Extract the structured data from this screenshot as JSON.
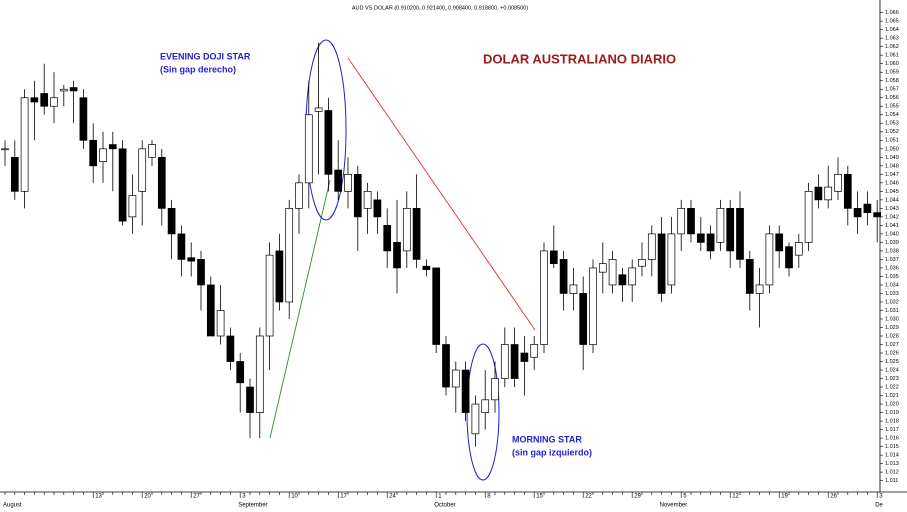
{
  "chart_data": {
    "type": "candlestick",
    "title": "AUD VS DOLAR (0.910200, 0.921400, 0.908400, 0.918800, +0.008500)",
    "annotations": [
      "EVENING DOJI STAR",
      "(Sin gap derecho)",
      "DOLAR AUSTRALIANO DIARIO",
      "MORNING STAR",
      "(sin gap izquierdo)"
    ],
    "categories": [
      null,
      null,
      null,
      null,
      null,
      null,
      null,
      null,
      null,
      "13",
      null,
      null,
      null,
      null,
      "20",
      null,
      null,
      null,
      null,
      "27",
      null,
      null,
      null,
      null,
      "3",
      null,
      null,
      null,
      null,
      "10",
      null,
      null,
      null,
      null,
      "17",
      null,
      null,
      null,
      null,
      "24",
      null,
      null,
      null,
      null,
      "1",
      null,
      null,
      null,
      null,
      "8",
      null,
      null,
      null,
      null,
      "15",
      null,
      null,
      null,
      null,
      "22",
      null,
      null,
      null,
      null,
      "29",
      null,
      null,
      null,
      null,
      "5",
      null,
      null,
      null,
      null,
      "12",
      null,
      null,
      null,
      null,
      "19",
      null,
      null,
      null,
      null,
      "26",
      null,
      null,
      null,
      null,
      "3"
    ],
    "months": [
      "August",
      null,
      null,
      null,
      null,
      null,
      null,
      null,
      null,
      null,
      null,
      null,
      null,
      null,
      null,
      null,
      null,
      null,
      null,
      null,
      null,
      null,
      null,
      null,
      "September",
      null,
      null,
      null,
      null,
      null,
      null,
      null,
      null,
      null,
      null,
      null,
      null,
      null,
      null,
      null,
      null,
      null,
      null,
      null,
      "October",
      null,
      null,
      null,
      null,
      null,
      null,
      null,
      null,
      null,
      null,
      null,
      null,
      null,
      null,
      null,
      null,
      null,
      null,
      null,
      null,
      null,
      null,
      "November",
      null,
      null,
      null,
      null,
      null,
      null,
      null,
      null,
      null,
      null,
      null,
      null,
      null,
      null,
      null,
      null,
      null,
      null,
      null,
      null,
      null,
      "De"
    ],
    "open": [
      1.05,
      1.049,
      1.045,
      1.056,
      1.0565,
      1.055,
      1.0568,
      1.0572,
      1.056,
      1.051,
      1.0485,
      1.0505,
      1.05,
      1.042,
      1.045,
      1.049,
      1.049,
      1.043,
      1.04,
      1.0372,
      1.037,
      1.034,
      1.028,
      1.028,
      1.025,
      1.022,
      1.019,
      1.028,
      1.038,
      1.032,
      1.043,
      1.046,
      1.0544,
      1.0545,
      1.0475,
      1.045,
      1.047,
      1.043,
      1.044,
      1.041,
      1.039,
      1.038,
      1.043,
      1.0362,
      1.036,
      1.027,
      1.022,
      1.024,
      1.0165,
      1.019,
      1.0205,
      1.023,
      1.027,
      1.026,
      1.0255,
      1.027,
      1.038,
      1.037,
      1.033,
      1.033,
      1.027,
      1.0355,
      1.034,
      1.0352,
      1.034,
      1.0362,
      1.037,
      1.04,
      1.034,
      1.04,
      1.043,
      1.04,
      1.04,
      1.039,
      1.043,
      1.043,
      1.037,
      1.033,
      1.034,
      1.04,
      1.0385,
      1.0375,
      1.039,
      1.0455,
      1.044,
      1.045,
      1.047,
      1.043,
      1.0435,
      1.0425
    ],
    "high": [
      1.051,
      1.051,
      1.057,
      1.058,
      1.06,
      1.059,
      1.0575,
      1.058,
      1.057,
      1.053,
      1.052,
      1.052,
      1.051,
      1.047,
      1.051,
      1.051,
      1.05,
      1.044,
      1.041,
      1.039,
      1.038,
      1.035,
      1.034,
      1.029,
      1.026,
      1.023,
      1.029,
      1.039,
      1.04,
      1.044,
      1.047,
      1.058,
      1.0625,
      1.056,
      1.051,
      1.049,
      1.048,
      1.046,
      1.045,
      1.043,
      1.044,
      1.045,
      1.047,
      1.037,
      1.036,
      1.028,
      1.025,
      1.025,
      1.021,
      1.024,
      1.025,
      1.029,
      1.029,
      1.028,
      1.028,
      1.039,
      1.041,
      1.038,
      1.036,
      1.035,
      1.037,
      1.039,
      1.038,
      1.036,
      1.037,
      1.039,
      1.041,
      1.042,
      1.042,
      1.044,
      1.044,
      1.042,
      1.041,
      1.044,
      1.044,
      1.045,
      1.038,
      1.036,
      1.041,
      1.041,
      1.039,
      1.04,
      1.046,
      1.047,
      1.048,
      1.049,
      1.048,
      1.045,
      1.045,
      1.044
    ],
    "low": [
      1.048,
      1.044,
      1.043,
      1.051,
      1.054,
      1.053,
      1.055,
      1.053,
      1.05,
      1.046,
      1.046,
      1.045,
      1.041,
      1.04,
      1.041,
      1.048,
      1.041,
      1.037,
      1.035,
      1.035,
      1.031,
      1.028,
      1.027,
      1.024,
      1.019,
      1.016,
      1.016,
      1.024,
      1.031,
      1.03,
      1.04,
      1.043,
      1.047,
      1.045,
      1.044,
      1.043,
      1.038,
      1.04,
      1.04,
      1.036,
      1.033,
      1.036,
      1.036,
      1.035,
      1.026,
      1.021,
      1.019,
      1.018,
      1.015,
      1.017,
      1.019,
      1.022,
      1.022,
      1.021,
      1.024,
      1.026,
      1.036,
      1.031,
      1.031,
      1.024,
      1.026,
      1.033,
      1.033,
      1.032,
      1.032,
      1.035,
      1.035,
      1.032,
      1.033,
      1.038,
      1.039,
      1.038,
      1.037,
      1.038,
      1.036,
      1.036,
      1.031,
      1.029,
      1.033,
      1.036,
      1.035,
      1.036,
      1.038,
      1.043,
      1.043,
      1.044,
      1.041,
      1.04,
      1.041,
      1.039
    ],
    "close": [
      1.05,
      1.045,
      1.056,
      1.0555,
      1.055,
      1.056,
      1.057,
      1.0568,
      1.051,
      1.048,
      1.05,
      1.05,
      1.0415,
      1.0445,
      1.05,
      1.0505,
      1.043,
      1.04,
      1.037,
      1.0368,
      1.034,
      1.028,
      1.031,
      1.025,
      1.0225,
      1.019,
      1.028,
      1.0375,
      1.032,
      1.043,
      1.046,
      1.054,
      1.0548,
      1.047,
      1.045,
      1.047,
      1.042,
      1.045,
      1.042,
      1.038,
      1.036,
      1.043,
      1.037,
      1.0358,
      1.027,
      1.022,
      1.024,
      1.019,
      1.02,
      1.0205,
      1.023,
      1.027,
      1.023,
      1.025,
      1.027,
      1.038,
      1.0365,
      1.033,
      1.034,
      1.027,
      1.036,
      1.0365,
      1.037,
      1.034,
      1.036,
      1.037,
      1.04,
      1.033,
      1.04,
      1.043,
      1.04,
      1.039,
      1.038,
      1.043,
      1.038,
      1.037,
      1.033,
      1.034,
      1.04,
      1.038,
      1.036,
      1.039,
      1.045,
      1.044,
      1.0455,
      1.047,
      1.043,
      1.042,
      1.0425,
      1.042
    ],
    "ylim": [
      1.0099,
      1.0669
    ],
    "yticks": [
      1.066,
      1.065,
      1.064,
      1.063,
      1.062,
      1.061,
      {
        "value": 1.06,
        "label": "1.060"
      },
      1.059,
      1.058,
      1.057,
      1.056,
      1.055,
      1.054,
      1.053,
      1.052,
      1.051,
      {
        "value": 1.05,
        "label": "1.050"
      },
      1.049,
      1.048,
      1.047,
      1.046,
      1.045,
      1.044,
      1.043,
      1.042,
      1.041,
      {
        "value": 1.04,
        "label": "1.040"
      },
      1.039,
      1.038,
      1.037,
      1.036,
      1.035,
      1.034,
      1.033,
      1.032,
      1.031,
      {
        "value": 1.03,
        "label": "1.030"
      },
      1.029,
      1.028,
      1.027,
      1.026,
      1.025,
      1.024,
      1.023,
      1.022,
      1.021,
      {
        "value": 1.02,
        "label": "1.020"
      },
      1.019,
      1.018,
      1.017,
      1.016,
      1.015,
      1.014,
      1.013,
      1.012,
      1.011
    ],
    "up_color": "#ffffff",
    "down_color": "#000000"
  }
}
